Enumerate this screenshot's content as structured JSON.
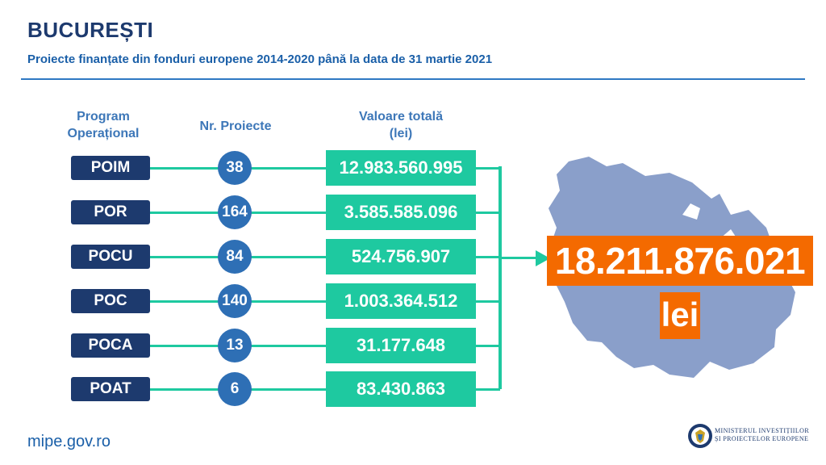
{
  "header": {
    "title": "BUCUREȘTI",
    "subtitle": "Proiecte finanțate din fonduri europene 2014-2020 până la data de 31 martie 2021"
  },
  "columns": {
    "program": "Program\nOperațional",
    "program_line1": "Program",
    "program_line2": "Operațional",
    "projects": "Nr. Proiecte",
    "value_line1": "Valoare totală",
    "value_line2": "(lei)"
  },
  "rows": [
    {
      "program": "POIM",
      "projects": "38",
      "value": "12.983.560.995"
    },
    {
      "program": "POR",
      "projects": "164",
      "value": "3.585.585.096"
    },
    {
      "program": "POCU",
      "projects": "84",
      "value": "524.756.907"
    },
    {
      "program": "POC",
      "projects": "140",
      "value": "1.003.364.512"
    },
    {
      "program": "POCA",
      "projects": "13",
      "value": "31.177.648"
    },
    {
      "program": "POAT",
      "projects": "6",
      "value": "83.430.863"
    }
  ],
  "total": {
    "value": "18.211.876.021",
    "unit": "lei"
  },
  "footer": {
    "url": "mipe.gov.ro",
    "ministry_line1": "MINISTERUL INVESTIȚIILOR",
    "ministry_line2": "ȘI PROIECTELOR EUROPENE"
  },
  "colors": {
    "navy": "#1d3a6e",
    "blue": "#2e6fb5",
    "green": "#1ec9a0",
    "orange": "#f46a00",
    "map": "#8a9fca"
  },
  "icons": {
    "map": "bucharest-map-icon",
    "emblem": "romania-coat-of-arms-icon"
  }
}
